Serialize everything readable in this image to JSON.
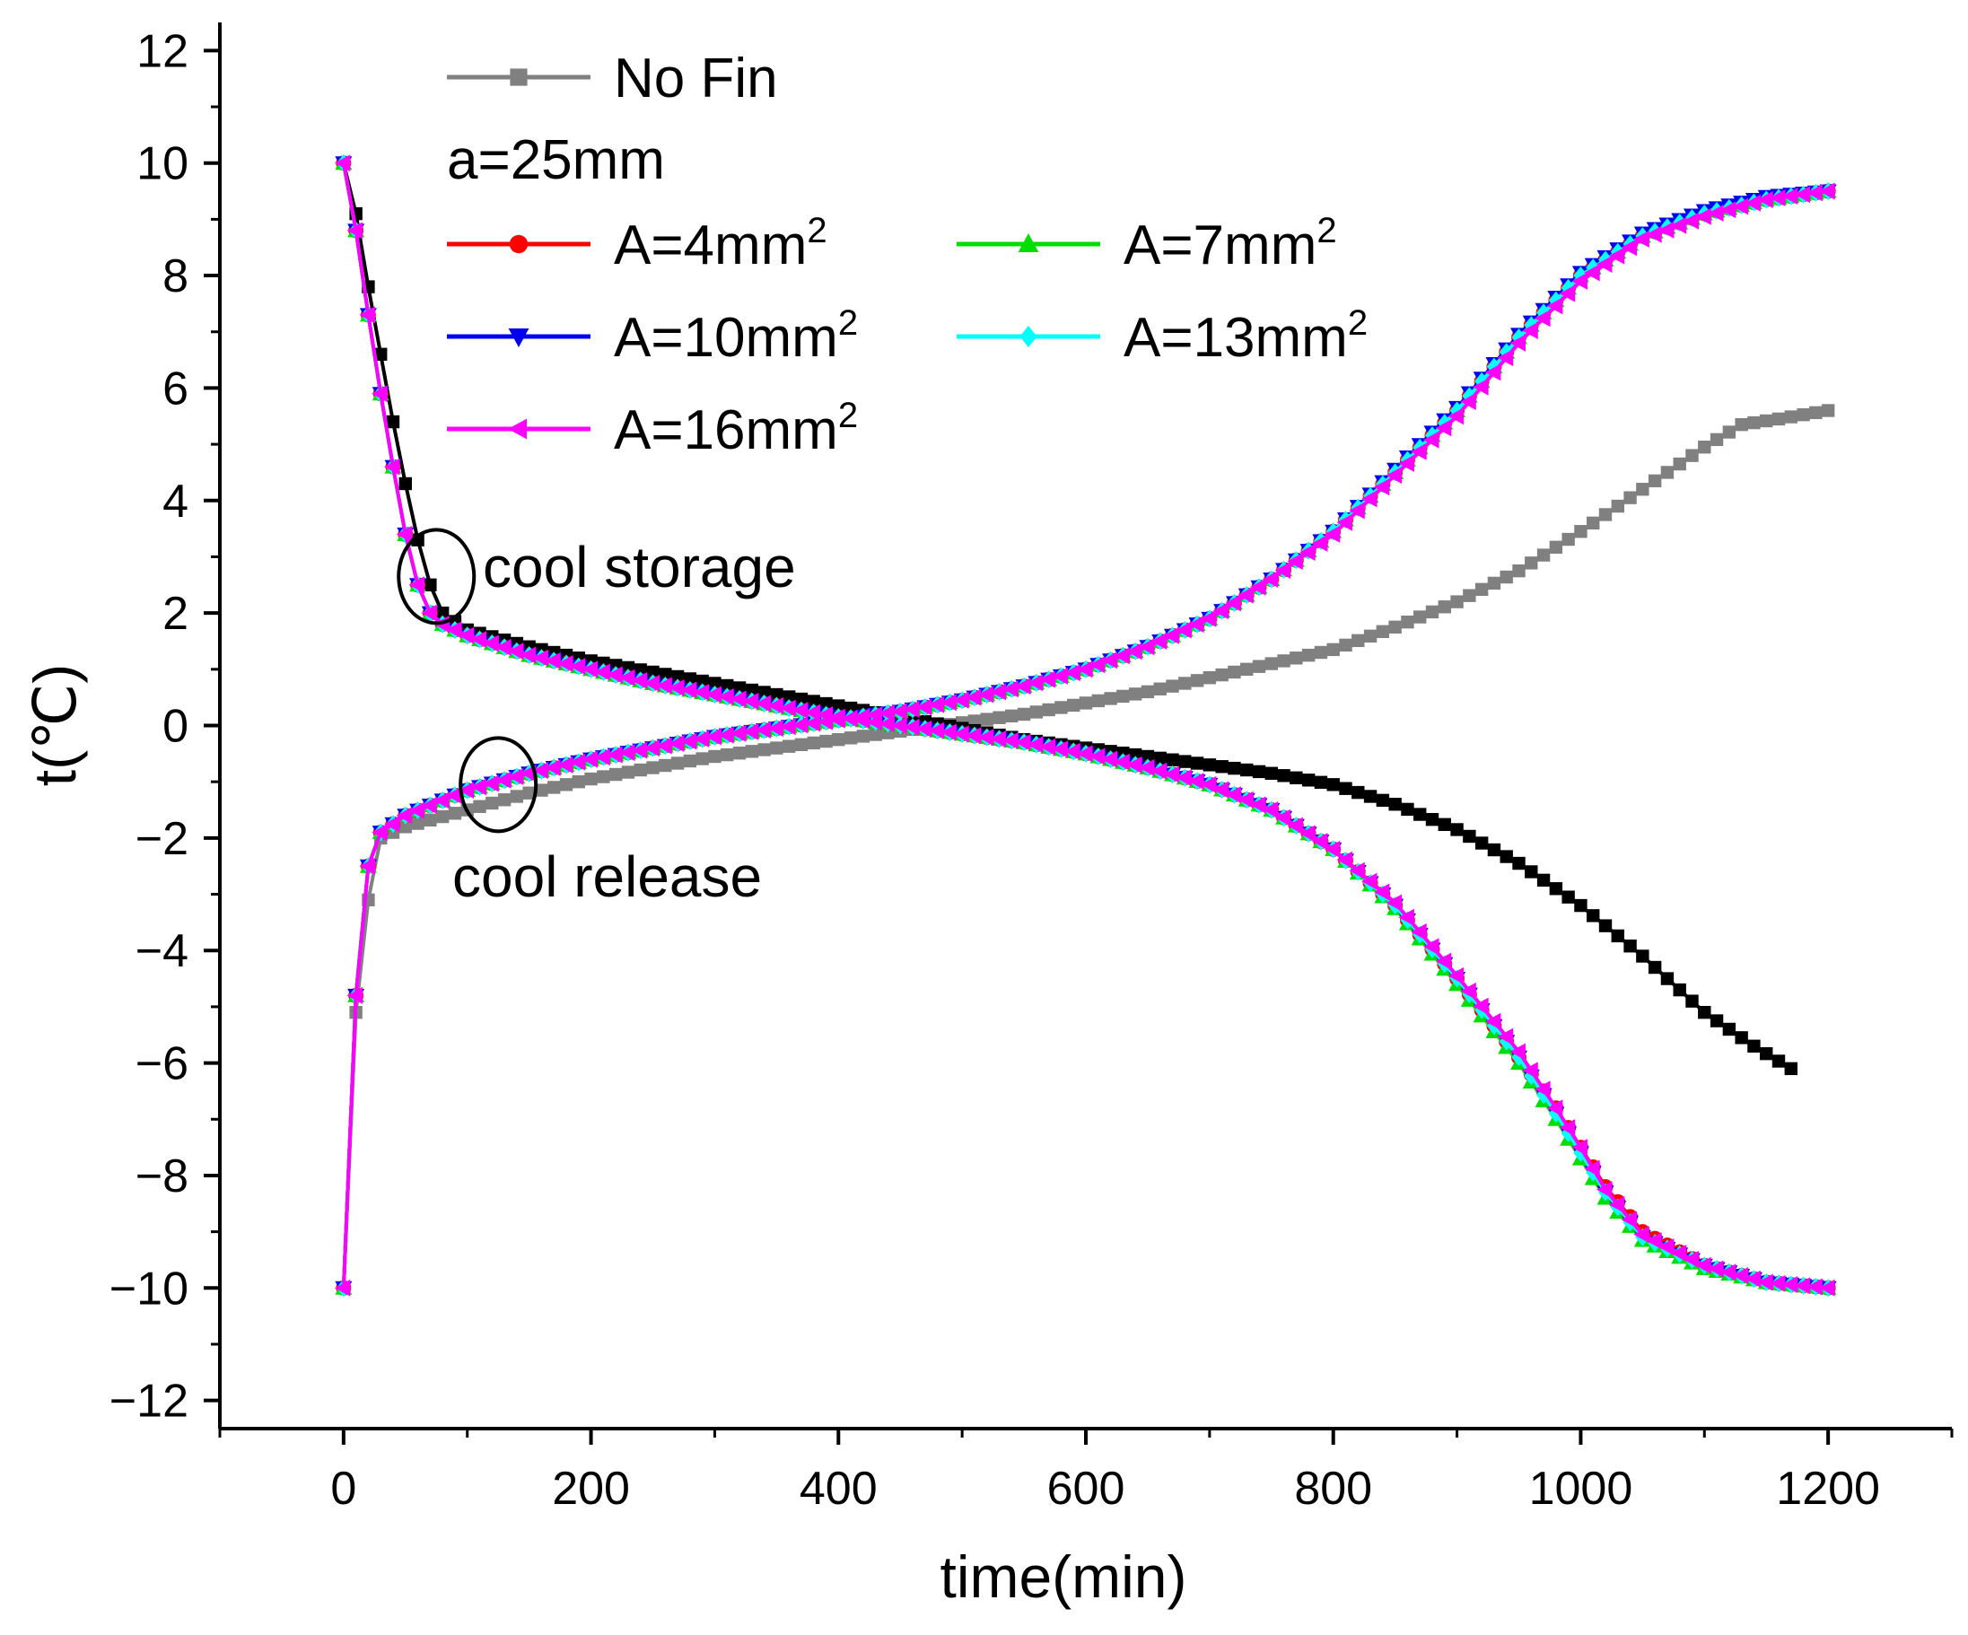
{
  "chart_data": {
    "type": "line",
    "title": "",
    "xlabel": "time(min)",
    "ylabel": "t(℃)",
    "xlim": [
      -100,
      1300
    ],
    "ylim": [
      -12.5,
      12.5
    ],
    "xticks": [
      0,
      200,
      400,
      600,
      800,
      1000,
      1200
    ],
    "yticks": [
      -12,
      -10,
      -8,
      -6,
      -4,
      -2,
      0,
      2,
      4,
      6,
      8,
      10,
      12
    ],
    "xtick_labels": [
      "0",
      "200",
      "400",
      "600",
      "800",
      "1000",
      "1200"
    ],
    "ytick_labels": [
      "−12",
      "−10",
      "−8",
      "−6",
      "−4",
      "−2",
      "0",
      "2",
      "4",
      "6",
      "8",
      "10",
      "12"
    ],
    "legend_header": "a=25mm",
    "series": [
      {
        "name": "No Fin",
        "legend_main": "No Fin",
        "legend_sup": "",
        "color": "#808080",
        "marker": "square",
        "storage": {
          "color": "#000000",
          "x": [
            0,
            10,
            20,
            30,
            40,
            50,
            60,
            70,
            80,
            100,
            150,
            200,
            250,
            300,
            350,
            400,
            450,
            500,
            550,
            600,
            650,
            700,
            750,
            800,
            850,
            900,
            950,
            1000,
            1050,
            1100,
            1140,
            1170
          ],
          "y": [
            10,
            9.1,
            7.8,
            6.6,
            5.4,
            4.3,
            3.3,
            2.5,
            2.0,
            1.7,
            1.4,
            1.15,
            0.95,
            0.75,
            0.55,
            0.35,
            0.15,
            -0.05,
            -0.25,
            -0.4,
            -0.55,
            -0.7,
            -0.85,
            -1.05,
            -1.4,
            -1.85,
            -2.45,
            -3.2,
            -4.1,
            -5.1,
            -5.7,
            -6.1
          ]
        },
        "release": {
          "color": "#808080",
          "x": [
            0,
            10,
            20,
            30,
            50,
            100,
            150,
            200,
            250,
            300,
            350,
            400,
            450,
            500,
            550,
            600,
            650,
            700,
            750,
            800,
            850,
            900,
            950,
            1000,
            1050,
            1100,
            1130,
            1160,
            1200
          ],
          "y": [
            -10,
            -5.1,
            -3.1,
            -2.0,
            -1.8,
            -1.5,
            -1.2,
            -0.95,
            -0.75,
            -0.55,
            -0.4,
            -0.25,
            -0.1,
            0.05,
            0.2,
            0.4,
            0.6,
            0.85,
            1.1,
            1.35,
            1.75,
            2.2,
            2.75,
            3.45,
            4.2,
            4.95,
            5.35,
            5.45,
            5.6
          ]
        }
      },
      {
        "name": "A=4mm2",
        "legend_main": "A=4mm",
        "legend_sup": "2",
        "color": "#ff0000",
        "marker": "circle",
        "storage": {
          "x": [
            0,
            10,
            20,
            30,
            40,
            50,
            60,
            70,
            80,
            100,
            150,
            200,
            250,
            300,
            350,
            400,
            450,
            500,
            550,
            600,
            650,
            700,
            750,
            800,
            850,
            900,
            950,
            980,
            1000,
            1020,
            1050,
            1100,
            1150,
            1200
          ],
          "y": [
            10,
            8.8,
            7.3,
            5.9,
            4.6,
            3.4,
            2.5,
            2.0,
            1.8,
            1.6,
            1.25,
            1.0,
            0.75,
            0.55,
            0.35,
            0.15,
            0.0,
            -0.15,
            -0.3,
            -0.5,
            -0.75,
            -1.05,
            -1.5,
            -2.2,
            -3.2,
            -4.5,
            -5.9,
            -6.8,
            -7.5,
            -8.2,
            -9.0,
            -9.6,
            -9.9,
            -10
          ]
        },
        "release": {
          "x": [
            0,
            10,
            20,
            30,
            50,
            100,
            150,
            200,
            250,
            300,
            350,
            400,
            450,
            500,
            550,
            600,
            650,
            700,
            750,
            800,
            850,
            900,
            950,
            1000,
            1050,
            1100,
            1150,
            1200
          ],
          "y": [
            -10,
            -4.8,
            -2.5,
            -1.9,
            -1.6,
            -1.15,
            -0.85,
            -0.6,
            -0.4,
            -0.2,
            -0.05,
            0.1,
            0.25,
            0.45,
            0.7,
            1.0,
            1.4,
            1.9,
            2.6,
            3.45,
            4.5,
            5.6,
            6.9,
            8.0,
            8.7,
            9.1,
            9.35,
            9.5
          ]
        }
      },
      {
        "name": "A=7mm2",
        "legend_main": "A=7mm",
        "legend_sup": "2",
        "color": "#00dd00",
        "marker": "triangle-up",
        "storage": {
          "x": [
            0,
            10,
            20,
            30,
            40,
            50,
            60,
            70,
            80,
            100,
            150,
            200,
            250,
            300,
            350,
            400,
            450,
            500,
            550,
            600,
            650,
            700,
            750,
            800,
            850,
            900,
            950,
            980,
            1000,
            1020,
            1050,
            1100,
            1150,
            1200
          ],
          "y": [
            10,
            8.8,
            7.3,
            5.9,
            4.6,
            3.4,
            2.5,
            2.0,
            1.8,
            1.6,
            1.25,
            1.0,
            0.75,
            0.55,
            0.35,
            0.15,
            0.0,
            -0.15,
            -0.3,
            -0.5,
            -0.75,
            -1.05,
            -1.5,
            -2.2,
            -3.25,
            -4.6,
            -6.0,
            -7.0,
            -7.7,
            -8.4,
            -9.15,
            -9.65,
            -9.9,
            -10
          ]
        },
        "release": {
          "x": [
            0,
            10,
            20,
            30,
            50,
            100,
            150,
            200,
            250,
            300,
            350,
            400,
            450,
            500,
            550,
            600,
            650,
            700,
            750,
            800,
            850,
            900,
            950,
            1000,
            1050,
            1100,
            1150,
            1200
          ],
          "y": [
            -10,
            -4.8,
            -2.5,
            -1.9,
            -1.6,
            -1.15,
            -0.85,
            -0.6,
            -0.4,
            -0.2,
            -0.05,
            0.1,
            0.25,
            0.45,
            0.7,
            1.0,
            1.4,
            1.9,
            2.6,
            3.45,
            4.5,
            5.6,
            6.9,
            8.0,
            8.7,
            9.1,
            9.35,
            9.5
          ]
        }
      },
      {
        "name": "A=10mm2",
        "legend_main": "A=10mm",
        "legend_sup": "2",
        "color": "#0000ee",
        "marker": "triangle-down",
        "storage": {
          "x": [
            0,
            10,
            20,
            30,
            40,
            50,
            60,
            70,
            80,
            100,
            150,
            200,
            250,
            300,
            350,
            400,
            450,
            500,
            550,
            600,
            650,
            700,
            750,
            800,
            850,
            900,
            950,
            980,
            1000,
            1020,
            1050,
            1100,
            1150,
            1200
          ],
          "y": [
            10,
            8.8,
            7.3,
            5.9,
            4.6,
            3.4,
            2.5,
            2.0,
            1.8,
            1.6,
            1.25,
            1.0,
            0.75,
            0.55,
            0.35,
            0.15,
            0.0,
            -0.15,
            -0.3,
            -0.5,
            -0.75,
            -1.05,
            -1.5,
            -2.2,
            -3.2,
            -4.5,
            -5.9,
            -6.9,
            -7.6,
            -8.3,
            -9.1,
            -9.6,
            -9.9,
            -10
          ]
        },
        "release": {
          "x": [
            0,
            10,
            20,
            30,
            50,
            100,
            150,
            200,
            250,
            300,
            350,
            400,
            450,
            500,
            550,
            600,
            650,
            700,
            750,
            800,
            850,
            900,
            950,
            1000,
            1050,
            1100,
            1150,
            1200
          ],
          "y": [
            -10,
            -4.8,
            -2.5,
            -1.9,
            -1.6,
            -1.15,
            -0.85,
            -0.6,
            -0.4,
            -0.2,
            -0.05,
            0.1,
            0.25,
            0.45,
            0.7,
            1.0,
            1.4,
            1.9,
            2.6,
            3.45,
            4.55,
            5.65,
            6.95,
            8.05,
            8.75,
            9.15,
            9.4,
            9.5
          ]
        }
      },
      {
        "name": "A=13mm2",
        "legend_main": "A=13mm",
        "legend_sup": "2",
        "color": "#00ffff",
        "marker": "diamond",
        "storage": {
          "x": [
            0,
            10,
            20,
            30,
            40,
            50,
            60,
            70,
            80,
            100,
            150,
            200,
            250,
            300,
            350,
            400,
            450,
            500,
            550,
            600,
            650,
            700,
            750,
            800,
            850,
            900,
            950,
            980,
            1000,
            1020,
            1050,
            1100,
            1150,
            1200
          ],
          "y": [
            10,
            8.8,
            7.3,
            5.9,
            4.6,
            3.4,
            2.5,
            2.0,
            1.8,
            1.6,
            1.25,
            1.0,
            0.75,
            0.55,
            0.35,
            0.15,
            0.0,
            -0.15,
            -0.3,
            -0.5,
            -0.75,
            -1.05,
            -1.5,
            -2.2,
            -3.2,
            -4.5,
            -5.9,
            -6.9,
            -7.6,
            -8.3,
            -9.1,
            -9.6,
            -9.9,
            -10
          ]
        },
        "release": {
          "x": [
            0,
            10,
            20,
            30,
            50,
            100,
            150,
            200,
            250,
            300,
            350,
            400,
            450,
            500,
            550,
            600,
            650,
            700,
            750,
            800,
            850,
            900,
            950,
            1000,
            1050,
            1100,
            1150,
            1200
          ],
          "y": [
            -10,
            -4.8,
            -2.5,
            -1.9,
            -1.6,
            -1.15,
            -0.85,
            -0.6,
            -0.4,
            -0.2,
            -0.05,
            0.1,
            0.25,
            0.45,
            0.7,
            1.0,
            1.4,
            1.9,
            2.6,
            3.45,
            4.5,
            5.6,
            6.9,
            8.0,
            8.7,
            9.1,
            9.35,
            9.5
          ]
        }
      },
      {
        "name": "A=16mm2",
        "legend_main": "A=16mm",
        "legend_sup": "2",
        "color": "#ff00ff",
        "marker": "triangle-left",
        "storage": {
          "x": [
            0,
            10,
            20,
            30,
            40,
            50,
            60,
            70,
            80,
            100,
            150,
            200,
            250,
            300,
            350,
            400,
            450,
            500,
            550,
            600,
            650,
            700,
            750,
            800,
            850,
            900,
            950,
            980,
            1000,
            1020,
            1050,
            1100,
            1150,
            1200
          ],
          "y": [
            10,
            8.8,
            7.3,
            5.9,
            4.6,
            3.4,
            2.5,
            2.0,
            1.8,
            1.6,
            1.25,
            1.0,
            0.75,
            0.55,
            0.35,
            0.15,
            0.0,
            -0.15,
            -0.3,
            -0.5,
            -0.75,
            -1.05,
            -1.5,
            -2.2,
            -3.15,
            -4.45,
            -5.8,
            -6.8,
            -7.5,
            -8.25,
            -9.05,
            -9.6,
            -9.9,
            -10
          ]
        },
        "release": {
          "x": [
            0,
            10,
            20,
            30,
            50,
            100,
            150,
            200,
            250,
            300,
            350,
            400,
            450,
            500,
            550,
            600,
            650,
            700,
            750,
            800,
            850,
            900,
            950,
            1000,
            1050,
            1100,
            1150,
            1200
          ],
          "y": [
            -10,
            -4.8,
            -2.5,
            -1.9,
            -1.6,
            -1.15,
            -0.85,
            -0.6,
            -0.4,
            -0.2,
            -0.05,
            0.1,
            0.25,
            0.45,
            0.7,
            1.0,
            1.4,
            1.9,
            2.6,
            3.4,
            4.45,
            5.5,
            6.8,
            7.9,
            8.65,
            9.05,
            9.35,
            9.5
          ]
        }
      }
    ],
    "annotations": [
      {
        "text": "cool storage",
        "ellipse_center": [
          75,
          2.65
        ]
      },
      {
        "text": "cool release",
        "ellipse_center": [
          125,
          -1.05
        ]
      }
    ]
  }
}
